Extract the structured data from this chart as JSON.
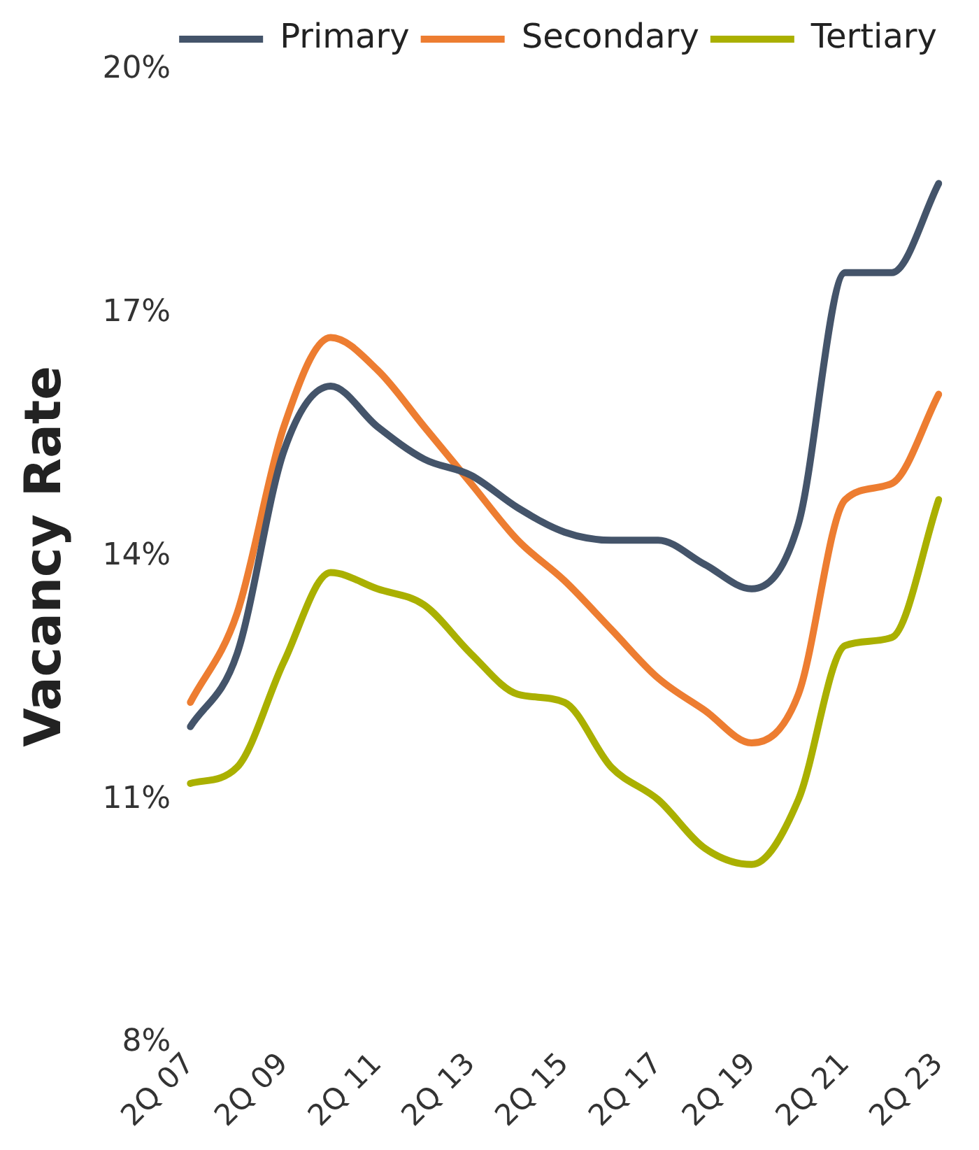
{
  "chart_data": {
    "type": "line",
    "ylabel": "Vacancy Rate",
    "categories": [
      "2Q 07",
      null,
      "2Q 09",
      null,
      "2Q 11",
      null,
      "2Q 13",
      null,
      "2Q 15",
      null,
      "2Q 17",
      null,
      "2Q 19",
      null,
      "2Q 21",
      null,
      "2Q 23"
    ],
    "series": [
      {
        "name": "Primary",
        "color": "#44546a",
        "values": [
          11.9,
          12.8,
          15.3,
          16.1,
          15.6,
          15.2,
          15.0,
          14.6,
          14.3,
          14.2,
          14.2,
          13.9,
          13.6,
          14.4,
          17.5,
          17.5,
          18.6
        ]
      },
      {
        "name": "Secondary",
        "color": "#ed7d31",
        "values": [
          12.2,
          13.3,
          15.6,
          16.7,
          16.3,
          15.6,
          14.9,
          14.2,
          13.7,
          13.1,
          12.5,
          12.1,
          11.7,
          12.3,
          14.7,
          14.9,
          16.0
        ]
      },
      {
        "name": "Tertiary",
        "color": "#aab000",
        "values": [
          11.2,
          11.4,
          12.7,
          13.8,
          13.6,
          13.4,
          12.8,
          12.3,
          12.2,
          11.4,
          11.0,
          10.4,
          10.2,
          11.0,
          12.9,
          13.0,
          14.7
        ]
      }
    ],
    "ylim": [
      8,
      20
    ],
    "yticks": [
      {
        "value": 8,
        "label": "8%"
      },
      {
        "value": 11,
        "label": "11%"
      },
      {
        "value": 14,
        "label": "14%"
      },
      {
        "value": 17,
        "label": "17%"
      },
      {
        "value": 20,
        "label": "20%"
      }
    ],
    "grid": false,
    "legend": "top",
    "marker": "none",
    "line_style": "solid"
  }
}
